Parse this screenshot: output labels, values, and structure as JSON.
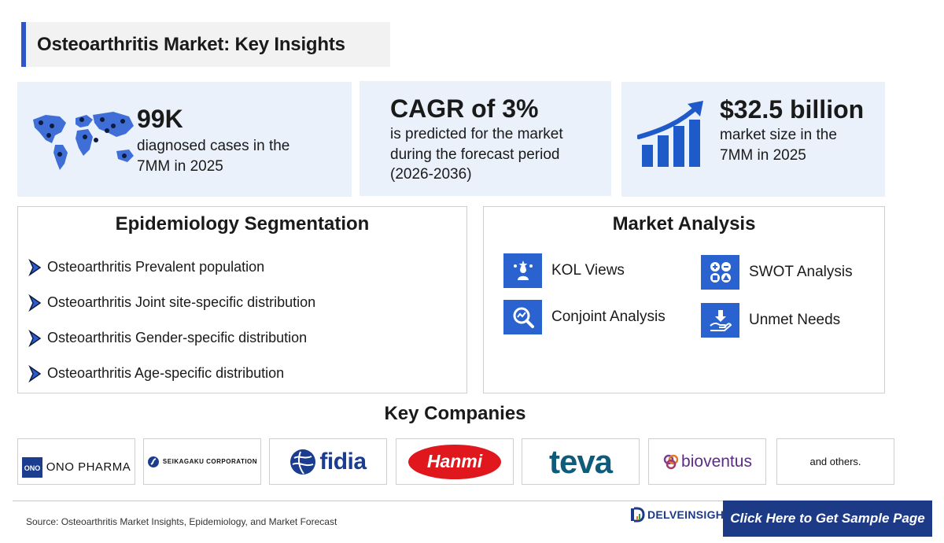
{
  "title": "Osteoarthritis Market: Key Insights",
  "stats": {
    "cases": {
      "value": "99K",
      "text": "diagnosed cases in the 7MM in 2025"
    },
    "cagr": {
      "value": "CAGR of 3%",
      "line1": "is predicted for the market",
      "line2": "during the forecast period",
      "line3": "(2026-2036)"
    },
    "market": {
      "value": "$32.5 billion",
      "line1": "market size in the",
      "line2": "7MM in 2025"
    }
  },
  "epidemiology": {
    "heading": "Epidemiology Segmentation",
    "items": [
      "Osteoarthritis Prevalent population",
      "Osteoarthritis Joint site-specific distribution",
      "Osteoarthritis Gender-specific distribution",
      "Osteoarthritis Age-specific distribution"
    ]
  },
  "market_analysis": {
    "heading": "Market Analysis",
    "items": [
      {
        "label": "KOL Views",
        "icon": "kol-icon"
      },
      {
        "label": "SWOT Analysis",
        "icon": "swot-icon"
      },
      {
        "label": "Conjoint Analysis",
        "icon": "conjoint-icon"
      },
      {
        "label": "Unmet Needs",
        "icon": "unmet-needs-icon"
      }
    ]
  },
  "key_companies": {
    "heading": "Key Companies",
    "logos": [
      "ONO PHARMA",
      "SEIKAGAKU CORPORATION",
      "fidia",
      "Hanmi",
      "teva",
      "bioventus"
    ],
    "others": "and others."
  },
  "footer": {
    "source": "Source: Osteoarthritis Market Insights, Epidemiology, and Market Forecast",
    "brand": "DELVEINSIGHT",
    "cta": "Click Here to Get Sample Page"
  },
  "colors": {
    "accent": "#2f55c9",
    "icon_blue": "#2a63cf",
    "panel_bg": "#eaf1fb",
    "cta_bg": "#1d3a87"
  }
}
